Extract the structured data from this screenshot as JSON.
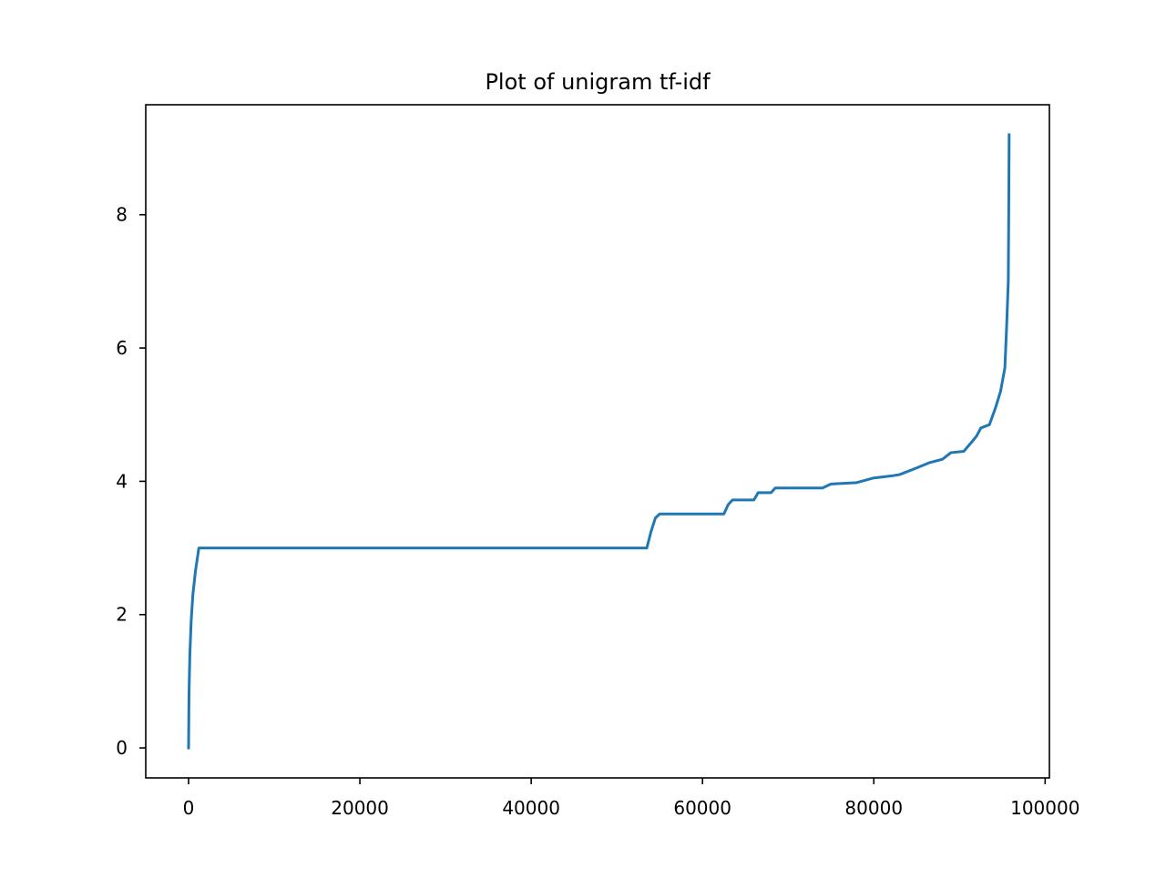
{
  "chart_data": {
    "type": "line",
    "title": "Plot of unigram tf-idf",
    "xlabel": "",
    "ylabel": "",
    "xlim": [
      -5000,
      100500
    ],
    "ylim": [
      -0.45,
      9.65
    ],
    "x_ticks": [
      0,
      20000,
      40000,
      60000,
      80000,
      100000
    ],
    "x_tick_labels": [
      "0",
      "20000",
      "40000",
      "60000",
      "80000",
      "100000"
    ],
    "y_ticks": [
      0,
      2,
      4,
      6,
      8
    ],
    "y_tick_labels": [
      "0",
      "2",
      "4",
      "6",
      "8"
    ],
    "grid": false,
    "legend": "none",
    "series": [
      {
        "color": "#1f77b4",
        "x": [
          0,
          50,
          150,
          300,
          500,
          800,
          1200,
          53500,
          54000,
          54500,
          55000,
          62500,
          63000,
          63500,
          66000,
          66500,
          68000,
          68500,
          74000,
          75000,
          78000,
          80000,
          82000,
          83000,
          85000,
          86500,
          88000,
          89000,
          90500,
          91500,
          92000,
          92500,
          93500,
          94200,
          94800,
          95300,
          95500,
          95700,
          95750,
          95800
        ],
        "y": [
          0.0,
          0.8,
          1.4,
          1.9,
          2.3,
          2.65,
          3.0,
          3.0,
          3.25,
          3.45,
          3.51,
          3.51,
          3.65,
          3.72,
          3.72,
          3.83,
          3.83,
          3.9,
          3.9,
          3.96,
          3.98,
          4.05,
          4.08,
          4.1,
          4.2,
          4.28,
          4.33,
          4.43,
          4.45,
          4.6,
          4.68,
          4.8,
          4.85,
          5.1,
          5.35,
          5.7,
          6.3,
          7.0,
          8.0,
          9.2
        ]
      }
    ]
  }
}
